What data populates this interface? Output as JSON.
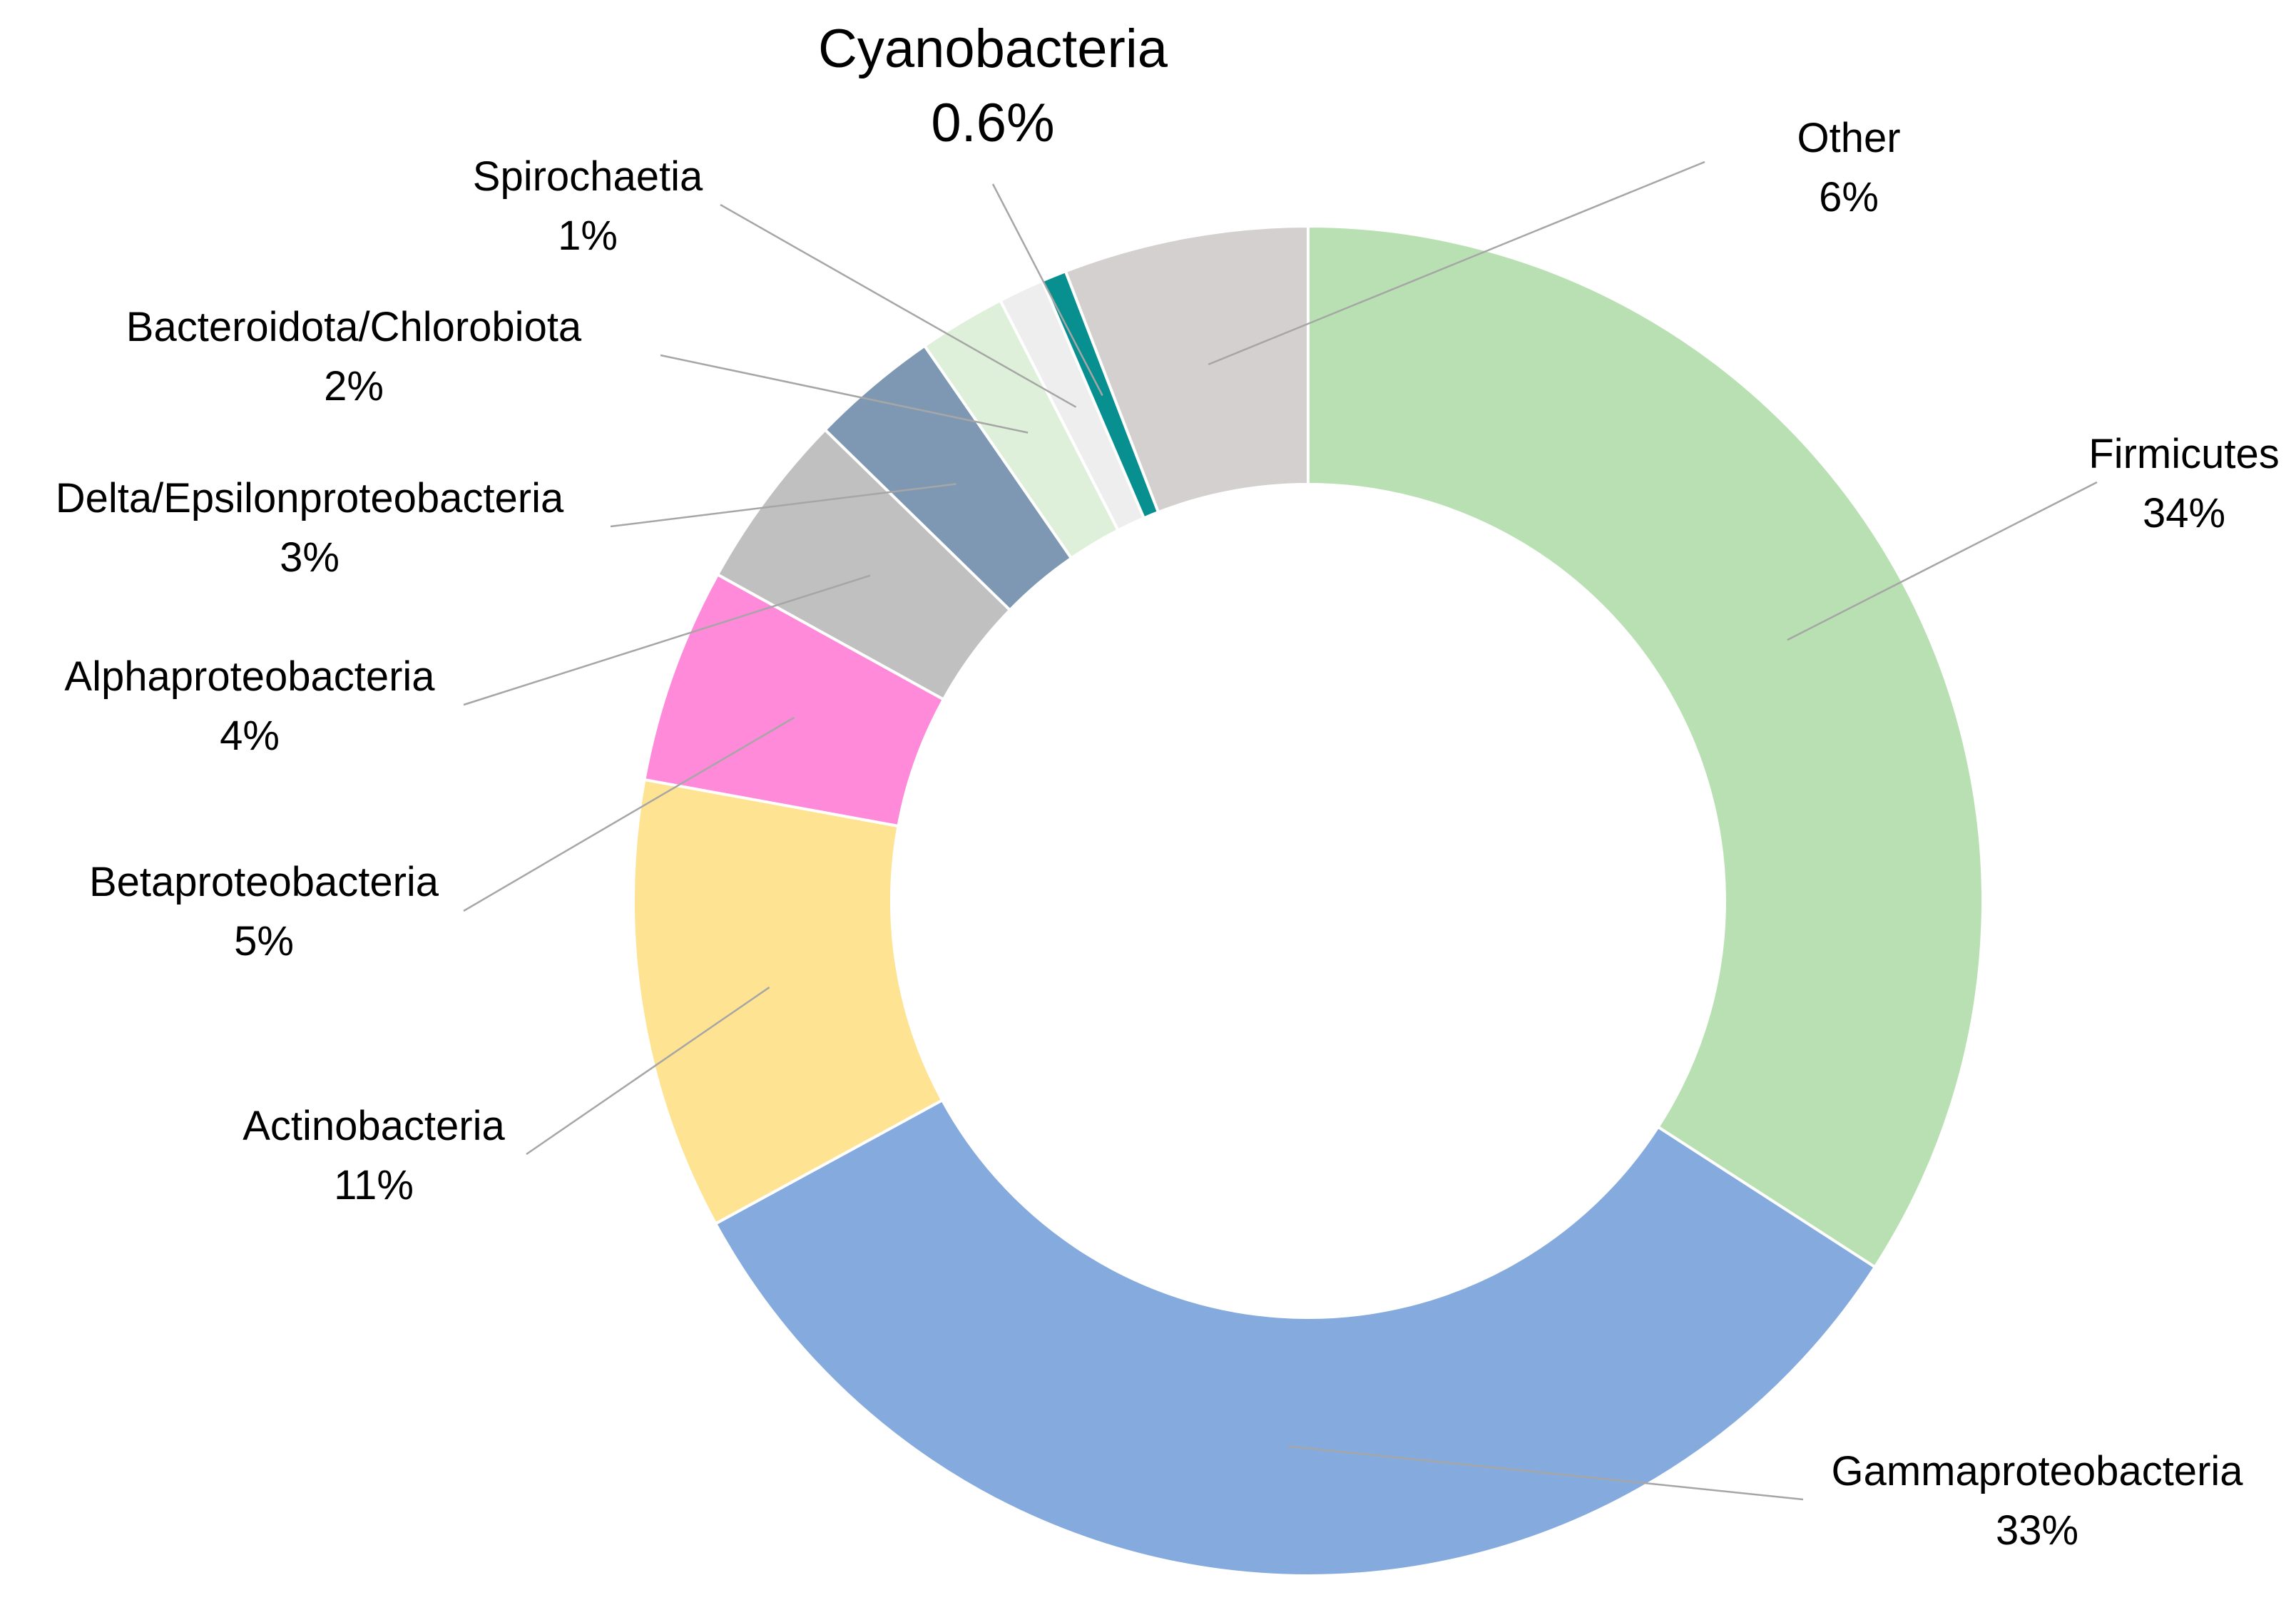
{
  "chart_data": {
    "type": "pie",
    "variant": "donut",
    "legend": "none",
    "slices": [
      {
        "id": "firmicutes",
        "label": "Firmicutes",
        "pct_label": "34%",
        "value": 34.4,
        "color": "#b9e0b2"
      },
      {
        "id": "gamma",
        "label": "Gammaproteobacteria",
        "pct_label": "33%",
        "value": 33.2,
        "color": "#85aade"
      },
      {
        "id": "actino",
        "label": "Actinobacteria",
        "pct_label": "11%",
        "value": 10.9,
        "color": "#fee393"
      },
      {
        "id": "beta",
        "label": "Betaproteobacteria",
        "pct_label": "5%",
        "value": 5.2,
        "color": "#fe8ad9"
      },
      {
        "id": "alpha",
        "label": "Alphaproteobacteria",
        "pct_label": "4%",
        "value": 4.3,
        "color": "#c0c0c0"
      },
      {
        "id": "delta",
        "label": "Delta/Epsilonproteobacteria",
        "pct_label": "3%",
        "value": 3.1,
        "color": "#7e98b3"
      },
      {
        "id": "bactero",
        "label": "Bacteroidota/Chlorobiota",
        "pct_label": "2%",
        "value": 2.1,
        "color": "#dff0da"
      },
      {
        "id": "spiro",
        "label": "Spirochaetia",
        "pct_label": "1%",
        "value": 1.1,
        "color": "#eeeeee"
      },
      {
        "id": "cyano",
        "label": "Cyanobacteria",
        "pct_label": "0.6%",
        "value": 0.6,
        "color": "#07908f"
      },
      {
        "id": "other",
        "label": "Other",
        "pct_label": "6%",
        "value": 5.9,
        "color": "#d5d0d0"
      }
    ]
  }
}
